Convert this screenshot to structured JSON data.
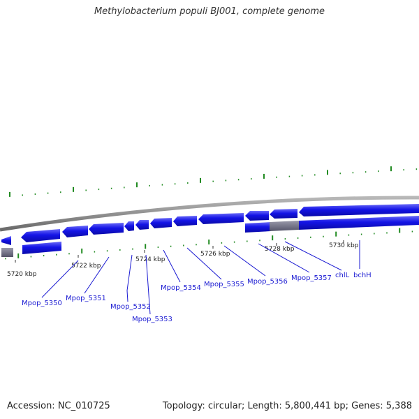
{
  "title": "Methylobacterium populi BJ001, complete genome",
  "footer": {
    "accession": "Accession: NC_010725",
    "summary": "Topology: circular; Length: 5,800,441 bp; Genes: 5,388"
  },
  "scale_labels": [
    "5720 kbp",
    "5722 kbp",
    "5724 kbp",
    "5726 kbp",
    "5728 kbp",
    "5730 kbp"
  ],
  "gene_labels": [
    "Mpop_5350",
    "Mpop_5351",
    "Mpop_5352",
    "Mpop_5353",
    "Mpop_5354",
    "Mpop_5355",
    "Mpop_5356",
    "Mpop_5357",
    "chlL",
    "bchH"
  ],
  "colors": {
    "gene_fill": "#1414e6",
    "gene_highlight": "#5050f5",
    "backbone": "#888888",
    "gc_tick": "#228b22",
    "label": "#1a1ad2",
    "gray_feature": "#6e6e82"
  }
}
